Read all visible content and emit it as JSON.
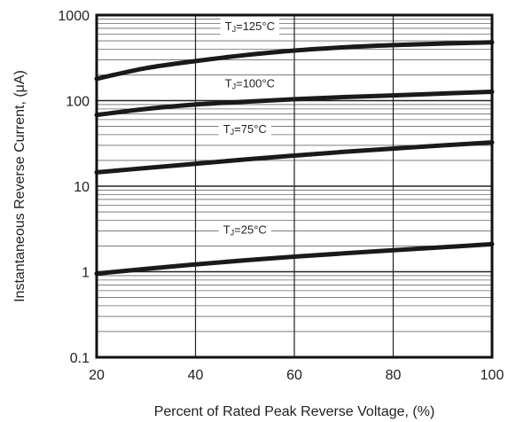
{
  "chart_data": {
    "type": "line",
    "title": "",
    "xlabel": "Percent of Rated Peak Reverse Voltage, (%)",
    "ylabel": "Instantaneous Reverse Current, (μA)",
    "xlim": [
      20,
      100
    ],
    "ylim": [
      0.1,
      1000
    ],
    "yscale": "log",
    "grid": true,
    "x_ticks": [
      {
        "value": 20,
        "label": "20"
      },
      {
        "value": 40,
        "label": "40"
      },
      {
        "value": 60,
        "label": "60"
      },
      {
        "value": 80,
        "label": "80"
      },
      {
        "value": 100,
        "label": "100"
      }
    ],
    "y_ticks": [
      {
        "value": 0.1,
        "label": "0.1"
      },
      {
        "value": 1,
        "label": "1"
      },
      {
        "value": 10,
        "label": "10"
      },
      {
        "value": 100,
        "label": "100"
      },
      {
        "value": 1000,
        "label": "1000"
      }
    ],
    "series": [
      {
        "label_prefix": "T",
        "label_subscript": "J",
        "label_suffix": "=125°C",
        "label_at": {
          "x": 51,
          "y": 750
        },
        "x": [
          20,
          30,
          40,
          50,
          60,
          70,
          80,
          90,
          100
        ],
        "y": [
          180,
          240,
          290,
          340,
          385,
          420,
          445,
          465,
          480
        ]
      },
      {
        "label_prefix": "T",
        "label_subscript": "J",
        "label_suffix": "=100°C",
        "label_at": {
          "x": 51,
          "y": 162
        },
        "x": [
          20,
          30,
          40,
          50,
          60,
          70,
          80,
          90,
          100
        ],
        "y": [
          68,
          80,
          90,
          97,
          104,
          110,
          115,
          121,
          127
        ]
      },
      {
        "label_prefix": "T",
        "label_subscript": "J",
        "label_suffix": "=75°C",
        "label_at": {
          "x": 50,
          "y": 47
        },
        "x": [
          20,
          30,
          40,
          50,
          60,
          70,
          80,
          90,
          100
        ],
        "y": [
          14.5,
          16.3,
          18.3,
          20.5,
          22.8,
          25.2,
          27.5,
          30,
          32.5
        ]
      },
      {
        "label_prefix": "T",
        "label_subscript": "J",
        "label_suffix": "=25°C",
        "label_at": {
          "x": 50,
          "y": 3.15
        },
        "x": [
          20,
          30,
          40,
          50,
          60,
          70,
          80,
          90,
          100
        ],
        "y": [
          0.95,
          1.08,
          1.22,
          1.36,
          1.5,
          1.64,
          1.78,
          1.93,
          2.1
        ]
      }
    ]
  }
}
